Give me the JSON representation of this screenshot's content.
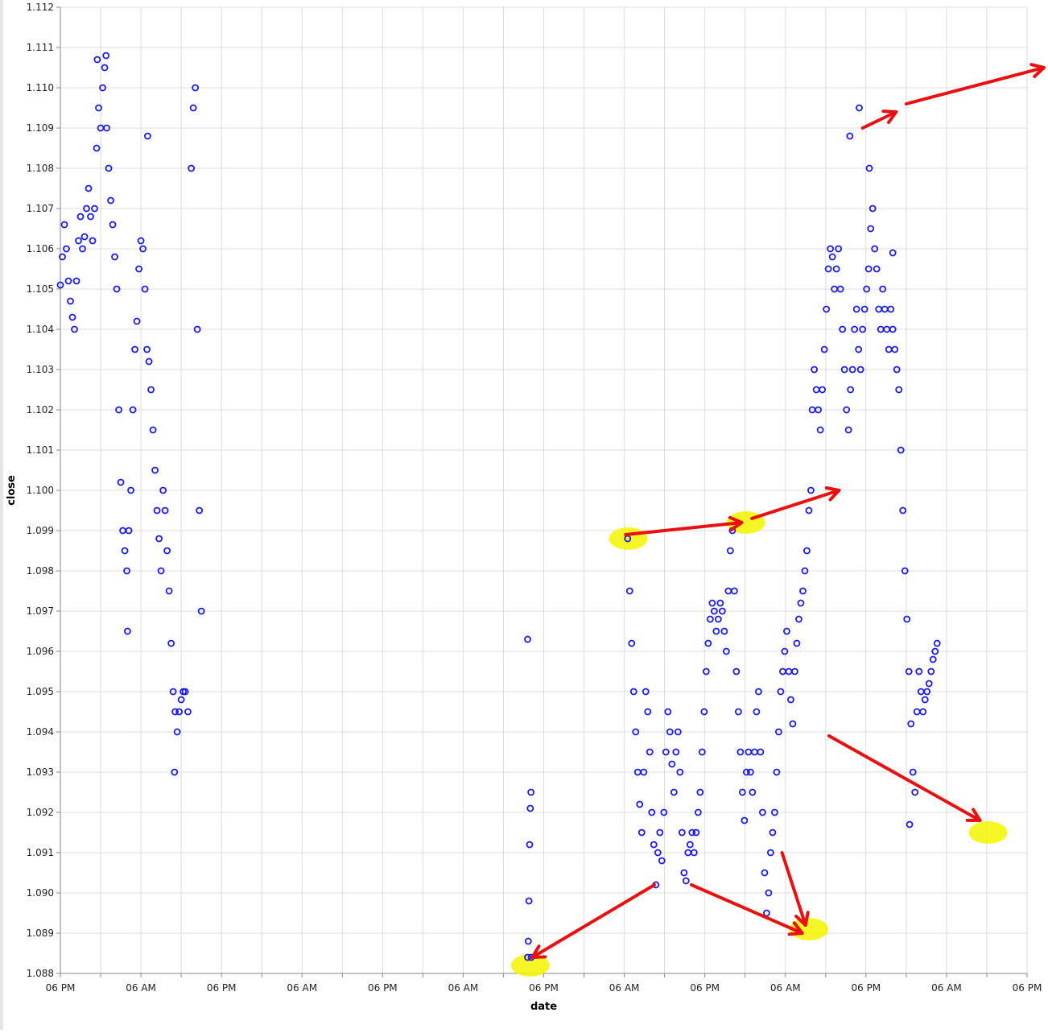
{
  "chart_data": {
    "type": "scatter",
    "xlabel": "date",
    "ylabel": "close",
    "ylim": [
      1.088,
      1.112
    ],
    "y_ticks": [
      "1.088",
      "1.089",
      "1.090",
      "1.091",
      "1.092",
      "1.093",
      "1.094",
      "1.095",
      "1.096",
      "1.097",
      "1.098",
      "1.099",
      "1.100",
      "1.101",
      "1.102",
      "1.103",
      "1.104",
      "1.105",
      "1.106",
      "1.107",
      "1.108",
      "1.109",
      "1.110",
      "1.111",
      "1.112"
    ],
    "x_tick_labels": [
      "06 PM",
      "06 AM",
      "06 PM",
      "06 AM",
      "06 PM",
      "06 AM",
      "06 PM",
      "06 AM",
      "06 PM",
      "06 AM",
      "06 PM",
      "06 AM",
      "06 PM"
    ],
    "x_range_hours": [
      0,
      144
    ],
    "x_label_every_hours": 12,
    "marker": "open-circle",
    "colors": {
      "points": "#1a1aee",
      "highlight": "#f5f500",
      "arrow": "#e81010",
      "grid": "#dddddd",
      "axis": "#888888"
    },
    "series": [
      {
        "points": [
          [
            0.0,
            1.1051
          ],
          [
            0.3,
            1.1058
          ],
          [
            0.6,
            1.1066
          ],
          [
            0.9,
            1.106
          ],
          [
            1.2,
            1.1052
          ],
          [
            1.5,
            1.1047
          ],
          [
            1.8,
            1.1043
          ],
          [
            2.1,
            1.104
          ],
          [
            2.4,
            1.1052
          ],
          [
            2.7,
            1.1062
          ],
          [
            3.0,
            1.1068
          ],
          [
            3.3,
            1.106
          ],
          [
            3.6,
            1.1063
          ],
          [
            3.9,
            1.107
          ],
          [
            4.2,
            1.1075
          ],
          [
            4.5,
            1.1068
          ],
          [
            4.8,
            1.1062
          ],
          [
            5.1,
            1.107
          ],
          [
            5.4,
            1.1085
          ],
          [
            5.7,
            1.1095
          ],
          [
            6.0,
            1.109
          ],
          [
            6.3,
            1.11
          ],
          [
            6.6,
            1.1105
          ],
          [
            6.9,
            1.109
          ],
          [
            7.2,
            1.108
          ],
          [
            7.5,
            1.1072
          ],
          [
            7.8,
            1.1066
          ],
          [
            8.1,
            1.1058
          ],
          [
            8.4,
            1.105
          ],
          [
            8.7,
            1.102
          ],
          [
            9.0,
            1.1002
          ],
          [
            9.3,
            1.099
          ],
          [
            9.6,
            1.0985
          ],
          [
            9.9,
            1.098
          ],
          [
            10.2,
            1.099
          ],
          [
            10.5,
            1.1
          ],
          [
            10.8,
            1.102
          ],
          [
            11.1,
            1.1035
          ],
          [
            11.4,
            1.1042
          ],
          [
            11.7,
            1.1055
          ],
          [
            12.0,
            1.1062
          ],
          [
            12.3,
            1.106
          ],
          [
            12.6,
            1.105
          ],
          [
            12.9,
            1.1035
          ],
          [
            13.2,
            1.1032
          ],
          [
            13.5,
            1.1025
          ],
          [
            13.8,
            1.1015
          ],
          [
            14.1,
            1.1005
          ],
          [
            14.4,
            1.0995
          ],
          [
            14.7,
            1.0988
          ],
          [
            15.0,
            1.098
          ],
          [
            15.3,
            1.1
          ],
          [
            15.6,
            1.0995
          ],
          [
            15.9,
            1.0985
          ],
          [
            16.2,
            1.0975
          ],
          [
            16.5,
            1.0962
          ],
          [
            16.8,
            1.095
          ],
          [
            17.1,
            1.0945
          ],
          [
            17.4,
            1.094
          ],
          [
            17.7,
            1.0945
          ],
          [
            18.0,
            1.0948
          ],
          [
            18.3,
            1.095
          ],
          [
            18.6,
            1.095
          ],
          [
            19.0,
            1.0945
          ],
          [
            19.5,
            1.108
          ],
          [
            19.8,
            1.1095
          ],
          [
            20.1,
            1.11
          ],
          [
            20.4,
            1.104
          ],
          [
            20.7,
            1.0995
          ],
          [
            21.0,
            1.097
          ],
          [
            5.5,
            1.1107
          ],
          [
            13.0,
            1.1088
          ],
          [
            10.0,
            1.0965
          ],
          [
            17.0,
            1.093
          ],
          [
            6.8,
            1.1108
          ],
          [
            69.6,
            1.0884
          ],
          [
            69.6,
            1.0963
          ],
          [
            69.7,
            1.0888
          ],
          [
            69.8,
            1.0898
          ],
          [
            69.9,
            1.0912
          ],
          [
            70.0,
            1.0921
          ],
          [
            70.1,
            1.0925
          ],
          [
            70.15,
            1.0884
          ],
          [
            84.5,
            1.0988
          ],
          [
            84.8,
            1.0975
          ],
          [
            85.1,
            1.0962
          ],
          [
            85.4,
            1.095
          ],
          [
            85.7,
            1.094
          ],
          [
            86.0,
            1.093
          ],
          [
            86.3,
            1.0922
          ],
          [
            86.6,
            1.0915
          ],
          [
            86.9,
            1.093
          ],
          [
            87.2,
            1.095
          ],
          [
            87.5,
            1.0945
          ],
          [
            87.8,
            1.0935
          ],
          [
            88.1,
            1.092
          ],
          [
            88.4,
            1.0912
          ],
          [
            88.7,
            1.0902
          ],
          [
            89.0,
            1.091
          ],
          [
            89.3,
            1.0915
          ],
          [
            89.6,
            1.0908
          ],
          [
            89.9,
            1.092
          ],
          [
            90.2,
            1.0935
          ],
          [
            90.5,
            1.0945
          ],
          [
            90.8,
            1.094
          ],
          [
            91.1,
            1.0932
          ],
          [
            91.4,
            1.0925
          ],
          [
            91.7,
            1.0935
          ],
          [
            92.0,
            1.094
          ],
          [
            92.3,
            1.093
          ],
          [
            92.6,
            1.0915
          ],
          [
            92.9,
            1.0905
          ],
          [
            93.2,
            1.0903
          ],
          [
            93.5,
            1.091
          ],
          [
            93.8,
            1.0912
          ],
          [
            94.1,
            1.0915
          ],
          [
            94.4,
            1.091
          ],
          [
            94.7,
            1.0915
          ],
          [
            95.0,
            1.092
          ],
          [
            95.3,
            1.0925
          ],
          [
            95.6,
            1.0935
          ],
          [
            95.9,
            1.0945
          ],
          [
            96.2,
            1.0955
          ],
          [
            96.5,
            1.0962
          ],
          [
            96.8,
            1.0968
          ],
          [
            97.1,
            1.0972
          ],
          [
            97.4,
            1.097
          ],
          [
            97.7,
            1.0965
          ],
          [
            98.0,
            1.0968
          ],
          [
            98.3,
            1.0972
          ],
          [
            98.6,
            1.097
          ],
          [
            98.9,
            1.0965
          ],
          [
            99.2,
            1.096
          ],
          [
            99.5,
            1.0975
          ],
          [
            99.8,
            1.0985
          ],
          [
            100.1,
            1.099
          ],
          [
            100.4,
            1.0975
          ],
          [
            100.7,
            1.0955
          ],
          [
            101.0,
            1.0945
          ],
          [
            101.3,
            1.0935
          ],
          [
            101.6,
            1.0925
          ],
          [
            101.9,
            1.0918
          ],
          [
            102.2,
            1.093
          ],
          [
            102.5,
            1.0935
          ],
          [
            102.8,
            1.093
          ],
          [
            103.1,
            1.0925
          ],
          [
            103.4,
            1.0935
          ],
          [
            103.7,
            1.0945
          ],
          [
            104.0,
            1.095
          ],
          [
            104.3,
            1.0935
          ],
          [
            104.6,
            1.092
          ],
          [
            104.9,
            1.0905
          ],
          [
            105.2,
            1.0895
          ],
          [
            105.5,
            1.09
          ],
          [
            105.8,
            1.091
          ],
          [
            106.1,
            1.0915
          ],
          [
            106.4,
            1.092
          ],
          [
            106.7,
            1.093
          ],
          [
            107.0,
            1.094
          ],
          [
            107.3,
            1.095
          ],
          [
            107.6,
            1.0955
          ],
          [
            107.9,
            1.096
          ],
          [
            108.2,
            1.0965
          ],
          [
            108.5,
            1.0955
          ],
          [
            108.8,
            1.0948
          ],
          [
            109.1,
            1.0942
          ],
          [
            109.4,
            1.0955
          ],
          [
            109.7,
            1.0962
          ],
          [
            110.0,
            1.0968
          ],
          [
            110.3,
            1.0972
          ],
          [
            110.6,
            1.0975
          ],
          [
            110.9,
            1.098
          ],
          [
            111.2,
            1.0985
          ],
          [
            111.5,
            1.0995
          ],
          [
            111.8,
            1.1
          ],
          [
            112.0,
            1.102
          ],
          [
            112.3,
            1.103
          ],
          [
            112.6,
            1.1025
          ],
          [
            112.9,
            1.102
          ],
          [
            113.2,
            1.1015
          ],
          [
            113.5,
            1.1025
          ],
          [
            113.8,
            1.1035
          ],
          [
            114.1,
            1.1045
          ],
          [
            114.4,
            1.1055
          ],
          [
            114.7,
            1.106
          ],
          [
            115.0,
            1.1058
          ],
          [
            115.3,
            1.105
          ],
          [
            115.6,
            1.1055
          ],
          [
            115.9,
            1.106
          ],
          [
            116.2,
            1.105
          ],
          [
            116.5,
            1.104
          ],
          [
            116.8,
            1.103
          ],
          [
            117.1,
            1.102
          ],
          [
            117.4,
            1.1015
          ],
          [
            117.7,
            1.1025
          ],
          [
            118.0,
            1.103
          ],
          [
            118.3,
            1.104
          ],
          [
            118.6,
            1.1045
          ],
          [
            118.9,
            1.1035
          ],
          [
            119.2,
            1.103
          ],
          [
            119.5,
            1.104
          ],
          [
            119.8,
            1.1045
          ],
          [
            120.1,
            1.105
          ],
          [
            120.4,
            1.1055
          ],
          [
            120.7,
            1.1065
          ],
          [
            121.0,
            1.107
          ],
          [
            121.3,
            1.106
          ],
          [
            121.6,
            1.1055
          ],
          [
            121.9,
            1.1045
          ],
          [
            122.2,
            1.104
          ],
          [
            122.5,
            1.105
          ],
          [
            122.8,
            1.1045
          ],
          [
            123.1,
            1.104
          ],
          [
            123.4,
            1.1035
          ],
          [
            123.7,
            1.1045
          ],
          [
            124.0,
            1.104
          ],
          [
            124.3,
            1.1035
          ],
          [
            124.6,
            1.103
          ],
          [
            124.9,
            1.1025
          ],
          [
            125.2,
            1.101
          ],
          [
            125.5,
            1.0995
          ],
          [
            125.8,
            1.098
          ],
          [
            126.1,
            1.0968
          ],
          [
            126.4,
            1.0955
          ],
          [
            126.7,
            1.0942
          ],
          [
            127.0,
            1.093
          ],
          [
            127.3,
            1.0925
          ],
          [
            127.6,
            1.0945
          ],
          [
            127.9,
            1.0955
          ],
          [
            128.2,
            1.095
          ],
          [
            128.5,
            1.0945
          ],
          [
            128.8,
            1.0948
          ],
          [
            129.1,
            1.095
          ],
          [
            129.4,
            1.0952
          ],
          [
            129.7,
            1.0955
          ],
          [
            130.0,
            1.0958
          ],
          [
            130.3,
            1.096
          ],
          [
            130.6,
            1.0962
          ],
          [
            117.6,
            1.1088
          ],
          [
            119.0,
            1.1095
          ],
          [
            120.5,
            1.108
          ],
          [
            124.0,
            1.1059
          ],
          [
            126.5,
            1.0917
          ]
        ]
      }
    ],
    "annotations": {
      "highlights": [
        {
          "x_hours": 70.0,
          "y": 1.0882
        },
        {
          "x_hours": 84.6,
          "y": 1.0988
        },
        {
          "x_hours": 102.1,
          "y": 1.0992
        },
        {
          "x_hours": 111.5,
          "y": 1.0891
        },
        {
          "x_hours": 138.2,
          "y": 1.0915
        }
      ],
      "arrows": [
        {
          "from": [
            88.5,
            1.0902
          ],
          "to": [
            70.3,
            1.0884
          ]
        },
        {
          "from": [
            84.2,
            1.0989
          ],
          "to": [
            101.5,
            1.0992
          ]
        },
        {
          "from": [
            103.0,
            1.0993
          ],
          "to": [
            116.0,
            1.1
          ]
        },
        {
          "from": [
            94.0,
            1.0902
          ],
          "to": [
            110.5,
            1.089
          ]
        },
        {
          "from": [
            107.5,
            1.091
          ],
          "to": [
            111.0,
            1.0892
          ]
        },
        {
          "from": [
            114.5,
            1.0939
          ],
          "to": [
            137.0,
            1.0918
          ]
        },
        {
          "from": [
            119.5,
            1.109
          ],
          "to": [
            124.5,
            1.1094
          ]
        },
        {
          "from": [
            126.0,
            1.1096
          ],
          "to": [
            146.5,
            1.1105
          ]
        }
      ]
    }
  }
}
